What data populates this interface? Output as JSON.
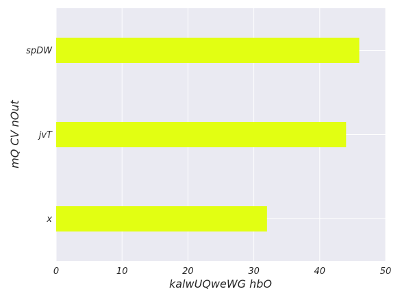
{
  "chart_data": {
    "type": "bar",
    "orientation": "horizontal",
    "categories": [
      "x",
      "jvT",
      "spDW"
    ],
    "values": [
      32,
      44,
      46
    ],
    "xlabel": "kalwUQweWG hbO",
    "ylabel": "mQ CV nOut",
    "xlim": [
      0,
      50
    ],
    "xticks": [
      0,
      10,
      20,
      30,
      40,
      50
    ],
    "grid": true,
    "colors": {
      "bar": "#e2ff12",
      "plot_background": "#eaeaf2",
      "grid": "#ffffff",
      "text": "#262626"
    }
  }
}
